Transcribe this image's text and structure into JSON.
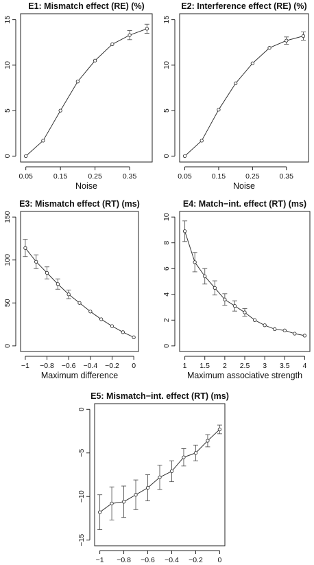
{
  "chart_data": [
    {
      "id": "e1",
      "type": "line",
      "title": "E1: Mismatch effect (RE) (%)",
      "xlabel": "Noise",
      "ylabel": "",
      "x": [
        0.05,
        0.1,
        0.15,
        0.2,
        0.25,
        0.3,
        0.35,
        0.4
      ],
      "y": [
        0.0,
        1.7,
        5.0,
        8.2,
        10.5,
        12.3,
        13.3,
        14.0
      ],
      "err": [
        0,
        0,
        0,
        0,
        0,
        0,
        0.5,
        0.5
      ],
      "xlim": [
        0.05,
        0.4
      ],
      "ylim": [
        0,
        15
      ],
      "xticks": [
        0.05,
        0.15,
        0.25,
        0.35
      ],
      "xticklabels": [
        "0.05",
        "0.15",
        "0.25",
        "0.35"
      ],
      "yticks": [
        0,
        5,
        10,
        15
      ],
      "yticklabels": [
        "0",
        "5",
        "10",
        "15"
      ]
    },
    {
      "id": "e2",
      "type": "line",
      "title": "E2: Interference effect (RE) (%)",
      "xlabel": "Noise",
      "ylabel": "",
      "x": [
        0.05,
        0.1,
        0.15,
        0.2,
        0.25,
        0.3,
        0.35,
        0.4
      ],
      "y": [
        0.0,
        1.7,
        5.1,
        8.0,
        10.2,
        11.9,
        12.7,
        13.2
      ],
      "err": [
        0,
        0,
        0,
        0,
        0,
        0,
        0.4,
        0.45
      ],
      "xlim": [
        0.05,
        0.4
      ],
      "ylim": [
        0,
        15
      ],
      "xticks": [
        0.05,
        0.15,
        0.25,
        0.35
      ],
      "xticklabels": [
        "0.05",
        "0.15",
        "0.25",
        "0.35"
      ],
      "yticks": [
        0,
        5,
        10,
        15
      ],
      "yticklabels": [
        "0",
        "5",
        "10",
        "15"
      ]
    },
    {
      "id": "e3",
      "type": "line",
      "title": "E3: Mismatch effect (RT) (ms)",
      "xlabel": "Maximum difference",
      "ylabel": "",
      "x": [
        -1.0,
        -0.9,
        -0.8,
        -0.7,
        -0.6,
        -0.5,
        -0.4,
        -0.3,
        -0.2,
        -0.1,
        0.0
      ],
      "y": [
        114,
        98,
        85,
        72,
        60,
        50,
        40,
        31,
        23,
        16,
        10
      ],
      "err": [
        10,
        8,
        7,
        6,
        5,
        0,
        0,
        0,
        0,
        0,
        0
      ],
      "xlim": [
        -1.0,
        0.0
      ],
      "ylim": [
        0,
        150
      ],
      "xticks": [
        -1.0,
        -0.8,
        -0.6,
        -0.4,
        -0.2,
        0.0
      ],
      "xticklabels": [
        "−1",
        "−0.8",
        "−0.6",
        "−0.4",
        "−0.2",
        "0"
      ],
      "yticks": [
        0,
        50,
        100,
        150
      ],
      "yticklabels": [
        "0",
        "50",
        "100",
        "150"
      ]
    },
    {
      "id": "e4",
      "type": "line",
      "title": "E4: Match−int. effect (RT) (ms)",
      "xlabel": "Maximum associative strength",
      "ylabel": "",
      "x": [
        1.0,
        1.25,
        1.5,
        1.75,
        2.0,
        2.25,
        2.5,
        2.75,
        3.0,
        3.25,
        3.5,
        3.75,
        4.0
      ],
      "y": [
        8.9,
        6.5,
        5.4,
        4.5,
        3.6,
        3.1,
        2.6,
        2.0,
        1.6,
        1.3,
        1.2,
        0.95,
        0.8
      ],
      "err": [
        0.8,
        0.75,
        0.6,
        0.55,
        0.45,
        0.4,
        0.3,
        0,
        0,
        0,
        0,
        0,
        0
      ],
      "xlim": [
        1.0,
        4.0
      ],
      "ylim": [
        0,
        10
      ],
      "xticks": [
        1.0,
        1.5,
        2.0,
        2.5,
        3.0,
        3.5,
        4.0
      ],
      "xticklabels": [
        "1",
        "1.5",
        "2",
        "2.5",
        "3",
        "3.5",
        "4"
      ],
      "yticks": [
        0,
        2,
        4,
        6,
        8,
        10
      ],
      "yticklabels": [
        "0",
        "2",
        "4",
        "6",
        "8",
        "10"
      ]
    },
    {
      "id": "e5",
      "type": "line",
      "title": "E5: Mismatch−int. effect (RT) (ms)",
      "xlabel": "Maximum difference",
      "ylabel": "",
      "x": [
        -1.0,
        -0.9,
        -0.8,
        -0.7,
        -0.6,
        -0.5,
        -0.4,
        -0.3,
        -0.2,
        -0.1,
        0.0
      ],
      "y": [
        -11.8,
        -10.8,
        -10.6,
        -9.8,
        -9.0,
        -7.8,
        -7.1,
        -5.5,
        -5.0,
        -3.6,
        -2.3
      ],
      "err": [
        2.0,
        1.9,
        1.8,
        1.7,
        1.5,
        1.4,
        1.2,
        1.0,
        0.9,
        0.7,
        0.5
      ],
      "xlim": [
        -1.0,
        0.0
      ],
      "ylim": [
        -15,
        0
      ],
      "xticks": [
        -1.0,
        -0.8,
        -0.6,
        -0.4,
        -0.2,
        0.0
      ],
      "xticklabels": [
        "−1",
        "−0.8",
        "−0.6",
        "−0.4",
        "−0.2",
        "0"
      ],
      "yticks": [
        -15,
        -10,
        -5,
        0
      ],
      "yticklabels": [
        "−15",
        "−10",
        "−5",
        "0"
      ]
    }
  ]
}
